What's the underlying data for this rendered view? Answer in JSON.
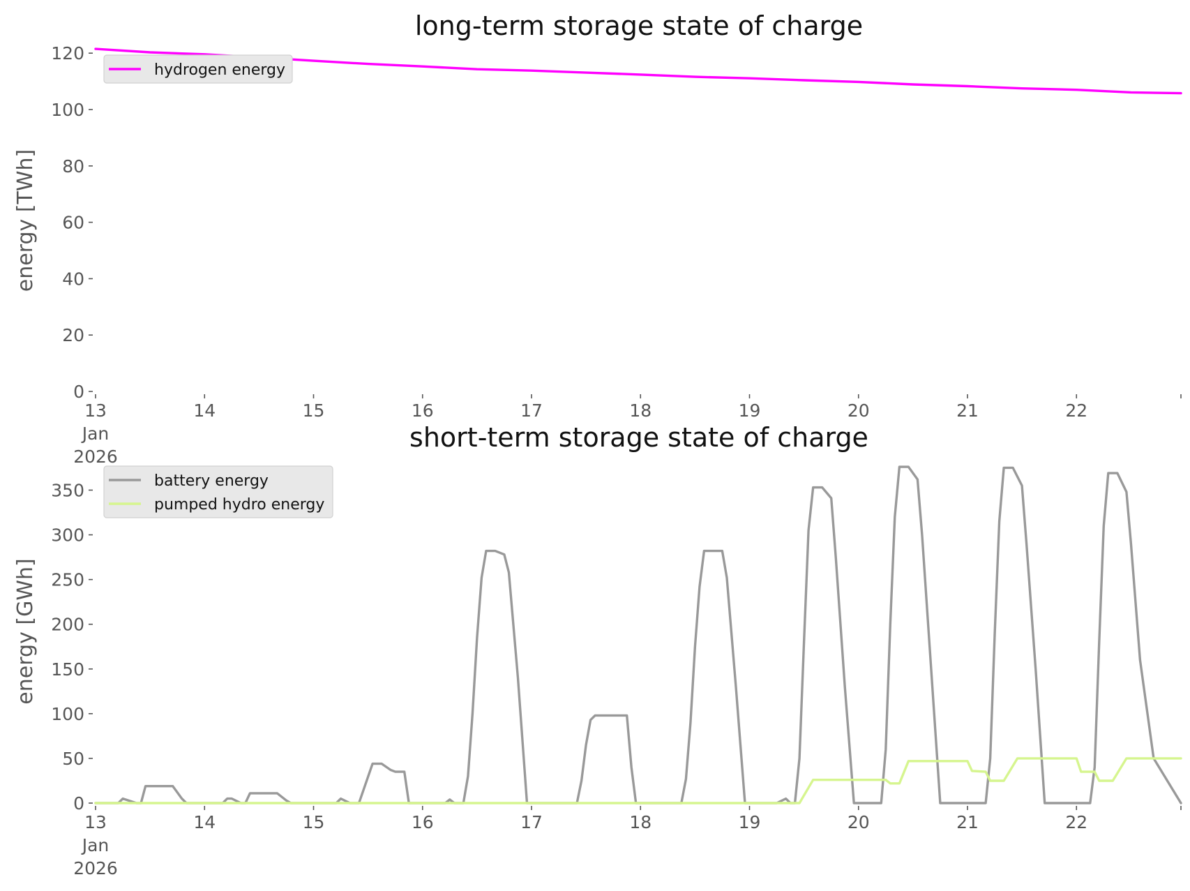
{
  "chart_data": [
    {
      "type": "line",
      "title": "long-term storage state of charge",
      "xlabel": "",
      "ylabel": "energy [TWh]",
      "xlim": [
        "2026-01-13 00:00",
        "2026-01-22 23:00"
      ],
      "ylim": [
        0,
        125
      ],
      "yticks": [
        0,
        20,
        40,
        60,
        80,
        100,
        120
      ],
      "x_tick_labels": [
        {
          "date": "2026-01-13",
          "lines": [
            "13",
            "Jan",
            "2026"
          ]
        },
        {
          "date": "2026-01-14",
          "lines": [
            "14"
          ]
        },
        {
          "date": "2026-01-15",
          "lines": [
            "15"
          ]
        },
        {
          "date": "2026-01-16",
          "lines": [
            "16"
          ]
        },
        {
          "date": "2026-01-17",
          "lines": [
            "17"
          ]
        },
        {
          "date": "2026-01-18",
          "lines": [
            "18"
          ]
        },
        {
          "date": "2026-01-19",
          "lines": [
            "19"
          ]
        },
        {
          "date": "2026-01-20",
          "lines": [
            "20"
          ]
        },
        {
          "date": "2026-01-21",
          "lines": [
            "21"
          ]
        },
        {
          "date": "2026-01-22",
          "lines": [
            "22"
          ]
        }
      ],
      "grid": false,
      "legend_position": "top-left",
      "series": [
        {
          "name": "hydrogen energy",
          "color": "#ff00ff",
          "points": [
            [
              "2026-01-13 00:00",
              121.5
            ],
            [
              "2026-01-13 12:00",
              120.3
            ],
            [
              "2026-01-14 00:00",
              119.6
            ],
            [
              "2026-01-14 12:00",
              118.5
            ],
            [
              "2026-01-15 00:00",
              117.3
            ],
            [
              "2026-01-15 12:00",
              116.2
            ],
            [
              "2026-01-16 00:00",
              115.3
            ],
            [
              "2026-01-16 12:00",
              114.3
            ],
            [
              "2026-01-17 00:00",
              113.8
            ],
            [
              "2026-01-17 12:00",
              113.1
            ],
            [
              "2026-01-18 00:00",
              112.4
            ],
            [
              "2026-01-18 12:00",
              111.6
            ],
            [
              "2026-01-19 00:00",
              111.1
            ],
            [
              "2026-01-19 12:00",
              110.4
            ],
            [
              "2026-01-20 00:00",
              109.8
            ],
            [
              "2026-01-20 12:00",
              108.9
            ],
            [
              "2026-01-21 00:00",
              108.3
            ],
            [
              "2026-01-21 12:00",
              107.5
            ],
            [
              "2026-01-22 00:00",
              107.0
            ],
            [
              "2026-01-22 12:00",
              106.1
            ],
            [
              "2026-01-22 23:00",
              105.8
            ]
          ]
        }
      ]
    },
    {
      "type": "line",
      "title": "short-term storage state of charge",
      "xlabel": "",
      "ylabel": "energy [GWh]",
      "xlim": [
        "2026-01-13 00:00",
        "2026-01-22 23:00"
      ],
      "ylim": [
        0,
        380
      ],
      "yticks": [
        0,
        50,
        100,
        150,
        200,
        250,
        300,
        350
      ],
      "x_tick_labels": [
        {
          "date": "2026-01-13",
          "lines": [
            "13",
            "Jan",
            "2026"
          ]
        },
        {
          "date": "2026-01-14",
          "lines": [
            "14"
          ]
        },
        {
          "date": "2026-01-15",
          "lines": [
            "15"
          ]
        },
        {
          "date": "2026-01-16",
          "lines": [
            "16"
          ]
        },
        {
          "date": "2026-01-17",
          "lines": [
            "17"
          ]
        },
        {
          "date": "2026-01-18",
          "lines": [
            "18"
          ]
        },
        {
          "date": "2026-01-19",
          "lines": [
            "19"
          ]
        },
        {
          "date": "2026-01-20",
          "lines": [
            "20"
          ]
        },
        {
          "date": "2026-01-21",
          "lines": [
            "21"
          ]
        },
        {
          "date": "2026-01-22",
          "lines": [
            "22"
          ]
        }
      ],
      "grid": false,
      "legend_position": "top-left",
      "series": [
        {
          "name": "battery energy",
          "color": "#999999",
          "points": [
            [
              "2026-01-13 00:00",
              0
            ],
            [
              "2026-01-13 05:00",
              0
            ],
            [
              "2026-01-13 06:00",
              5
            ],
            [
              "2026-01-13 09:00",
              0
            ],
            [
              "2026-01-13 10:00",
              0
            ],
            [
              "2026-01-13 11:00",
              19
            ],
            [
              "2026-01-13 17:00",
              19
            ],
            [
              "2026-01-13 19:00",
              5
            ],
            [
              "2026-01-13 20:00",
              0
            ],
            [
              "2026-01-14 04:00",
              0
            ],
            [
              "2026-01-14 05:00",
              5
            ],
            [
              "2026-01-14 06:00",
              5
            ],
            [
              "2026-01-14 08:00",
              0
            ],
            [
              "2026-01-14 09:00",
              0
            ],
            [
              "2026-01-14 10:00",
              11
            ],
            [
              "2026-01-14 16:00",
              11
            ],
            [
              "2026-01-14 18:00",
              3
            ],
            [
              "2026-01-14 19:00",
              0
            ],
            [
              "2026-01-15 05:00",
              0
            ],
            [
              "2026-01-15 06:00",
              5
            ],
            [
              "2026-01-15 08:00",
              0
            ],
            [
              "2026-01-15 10:00",
              0
            ],
            [
              "2026-01-15 13:00",
              44
            ],
            [
              "2026-01-15 15:00",
              44
            ],
            [
              "2026-01-15 17:00",
              37
            ],
            [
              "2026-01-15 18:00",
              35
            ],
            [
              "2026-01-15 20:00",
              35
            ],
            [
              "2026-01-15 21:00",
              0
            ],
            [
              "2026-01-16 05:00",
              0
            ],
            [
              "2026-01-16 06:00",
              4
            ],
            [
              "2026-01-16 07:00",
              0
            ],
            [
              "2026-01-16 09:00",
              0
            ],
            [
              "2026-01-16 10:00",
              30
            ],
            [
              "2026-01-16 11:00",
              100
            ],
            [
              "2026-01-16 12:00",
              185
            ],
            [
              "2026-01-16 13:00",
              252
            ],
            [
              "2026-01-16 14:00",
              282
            ],
            [
              "2026-01-16 16:00",
              282
            ],
            [
              "2026-01-16 18:00",
              278
            ],
            [
              "2026-01-16 19:00",
              258
            ],
            [
              "2026-01-16 21:00",
              140
            ],
            [
              "2026-01-16 23:00",
              0
            ],
            [
              "2026-01-17 10:00",
              0
            ],
            [
              "2026-01-17 11:00",
              25
            ],
            [
              "2026-01-17 12:00",
              65
            ],
            [
              "2026-01-17 13:00",
              93
            ],
            [
              "2026-01-17 14:00",
              98
            ],
            [
              "2026-01-17 21:00",
              98
            ],
            [
              "2026-01-17 22:00",
              40
            ],
            [
              "2026-01-17 23:00",
              0
            ],
            [
              "2026-01-18 09:00",
              0
            ],
            [
              "2026-01-18 10:00",
              27
            ],
            [
              "2026-01-18 11:00",
              90
            ],
            [
              "2026-01-18 12:00",
              175
            ],
            [
              "2026-01-18 13:00",
              242
            ],
            [
              "2026-01-18 14:00",
              282
            ],
            [
              "2026-01-18 18:00",
              282
            ],
            [
              "2026-01-18 19:00",
              252
            ],
            [
              "2026-01-18 21:00",
              130
            ],
            [
              "2026-01-18 23:00",
              0
            ],
            [
              "2026-01-19 06:00",
              0
            ],
            [
              "2026-01-19 08:00",
              5
            ],
            [
              "2026-01-19 09:00",
              0
            ],
            [
              "2026-01-19 10:00",
              0
            ],
            [
              "2026-01-19 11:00",
              50
            ],
            [
              "2026-01-19 12:00",
              180
            ],
            [
              "2026-01-19 13:00",
              305
            ],
            [
              "2026-01-19 14:00",
              353
            ],
            [
              "2026-01-19 16:00",
              353
            ],
            [
              "2026-01-19 18:00",
              341
            ],
            [
              "2026-01-19 19:00",
              275
            ],
            [
              "2026-01-19 21:00",
              130
            ],
            [
              "2026-01-19 23:00",
              0
            ],
            [
              "2026-01-20 04:00",
              0
            ],
            [
              "2026-01-20 05:00",
              0
            ],
            [
              "2026-01-20 06:00",
              60
            ],
            [
              "2026-01-20 07:00",
              200
            ],
            [
              "2026-01-20 08:00",
              320
            ],
            [
              "2026-01-20 09:00",
              376
            ],
            [
              "2026-01-20 11:00",
              376
            ],
            [
              "2026-01-20 13:00",
              362
            ],
            [
              "2026-01-20 14:00",
              300
            ],
            [
              "2026-01-20 16:00",
              150
            ],
            [
              "2026-01-20 18:00",
              0
            ],
            [
              "2026-01-21 04:00",
              0
            ],
            [
              "2026-01-21 05:00",
              50
            ],
            [
              "2026-01-21 06:00",
              190
            ],
            [
              "2026-01-21 07:00",
              315
            ],
            [
              "2026-01-21 08:00",
              375
            ],
            [
              "2026-01-21 10:00",
              375
            ],
            [
              "2026-01-21 12:00",
              355
            ],
            [
              "2026-01-21 13:00",
              290
            ],
            [
              "2026-01-21 15:00",
              150
            ],
            [
              "2026-01-21 17:00",
              0
            ],
            [
              "2026-01-22 03:00",
              0
            ],
            [
              "2026-01-22 04:00",
              40
            ],
            [
              "2026-01-22 05:00",
              180
            ],
            [
              "2026-01-22 06:00",
              310
            ],
            [
              "2026-01-22 07:00",
              369
            ],
            [
              "2026-01-22 09:00",
              369
            ],
            [
              "2026-01-22 11:00",
              348
            ],
            [
              "2026-01-22 12:00",
              290
            ],
            [
              "2026-01-22 14:00",
              160
            ],
            [
              "2026-01-22 17:00",
              50
            ],
            [
              "2026-01-22 23:00",
              0
            ]
          ]
        },
        {
          "name": "pumped hydro energy",
          "color": "#d6f58f",
          "points": [
            [
              "2026-01-13 00:00",
              0
            ],
            [
              "2026-01-19 11:00",
              0
            ],
            [
              "2026-01-19 14:00",
              26
            ],
            [
              "2026-01-20 06:00",
              26
            ],
            [
              "2026-01-20 07:00",
              22
            ],
            [
              "2026-01-20 09:00",
              22
            ],
            [
              "2026-01-20 11:00",
              47
            ],
            [
              "2026-01-21 00:00",
              47
            ],
            [
              "2026-01-21 01:00",
              36
            ],
            [
              "2026-01-21 04:00",
              35
            ],
            [
              "2026-01-21 05:00",
              25
            ],
            [
              "2026-01-21 08:00",
              25
            ],
            [
              "2026-01-21 11:00",
              50
            ],
            [
              "2026-01-22 00:00",
              50
            ],
            [
              "2026-01-22 01:00",
              35
            ],
            [
              "2026-01-22 04:00",
              35
            ],
            [
              "2026-01-22 05:00",
              25
            ],
            [
              "2026-01-22 08:00",
              25
            ],
            [
              "2026-01-22 11:00",
              50
            ],
            [
              "2026-01-22 23:00",
              50
            ]
          ]
        }
      ]
    }
  ]
}
